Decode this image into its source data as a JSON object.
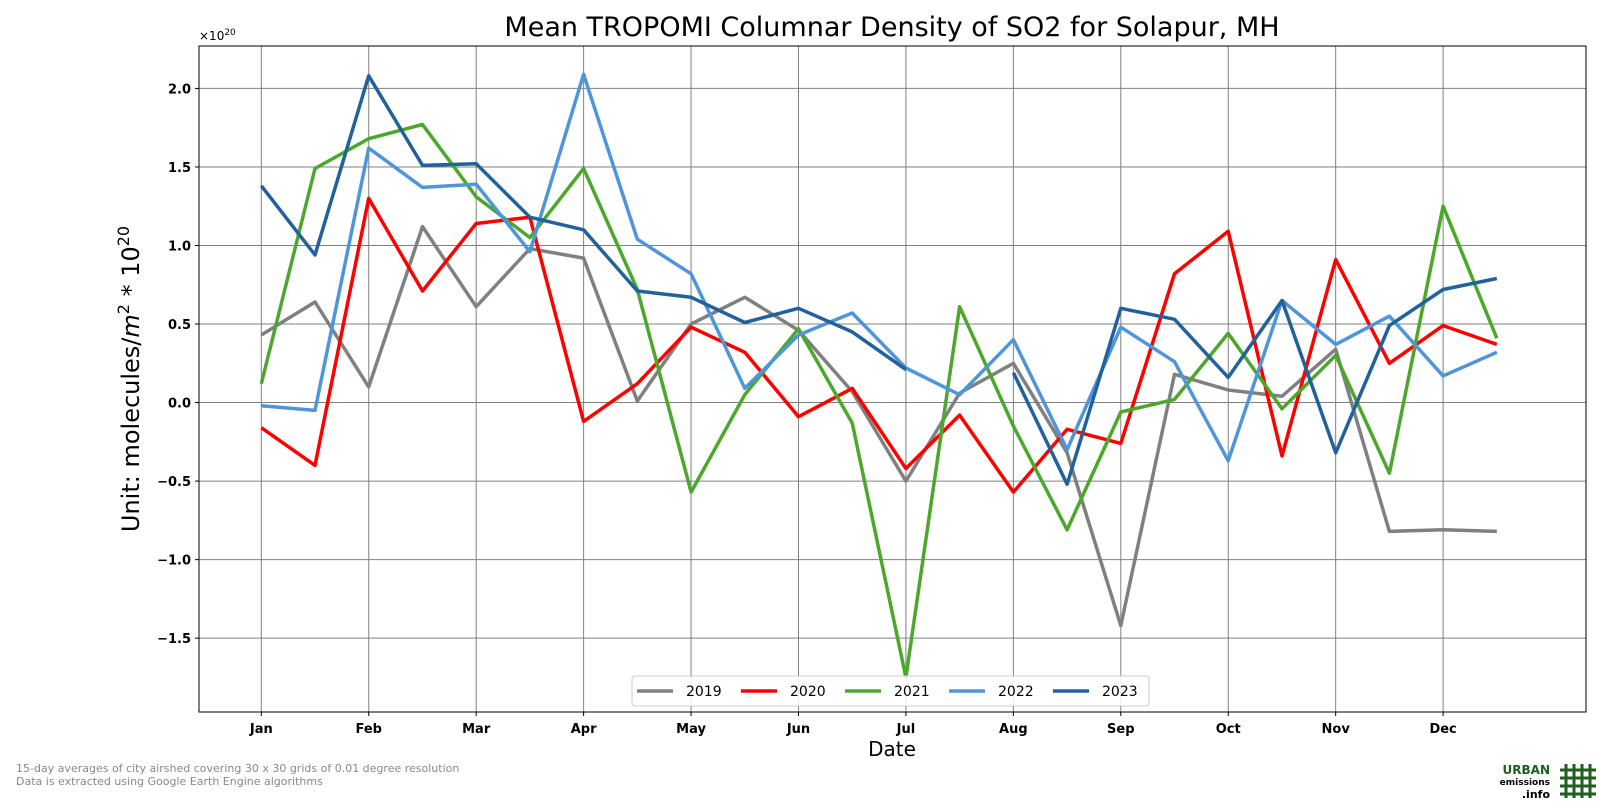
{
  "chart_data": {
    "type": "line",
    "title": "Mean TROPOMI Columnar Density of SO2 for Solapur, MH",
    "xlabel": "Date",
    "ylabel": "Unit: molecules/m² * 10²⁰",
    "ylabel_parts": {
      "prefix": "Unit: molecules/",
      "m": "m",
      "m_exp": "2",
      "mid": " * 10",
      "exp": "20"
    },
    "offset_text": {
      "base": "×10",
      "exp": "20"
    },
    "months": [
      "Jan",
      "Feb",
      "Mar",
      "Apr",
      "May",
      "Jun",
      "Jul",
      "Aug",
      "Sep",
      "Oct",
      "Nov",
      "Dec"
    ],
    "y_ticks": [
      "2.0",
      "1.5",
      "1.0",
      "0.5",
      "0.0",
      "−0.5",
      "−1.0",
      "−1.5"
    ],
    "x_range": [
      -0.58,
      12.33
    ],
    "ylim": [
      -1.97,
      2.27
    ],
    "grid": true,
    "legend_position": "lower center",
    "series": [
      {
        "name": "2019",
        "color": "#808080",
        "x": [
          0,
          0.5,
          1,
          1.5,
          2,
          2.5,
          3,
          3.5,
          4,
          4.5,
          5,
          5.5,
          6,
          6.5,
          7,
          7.5,
          8,
          8.5,
          9,
          9.5,
          10,
          10.5,
          11,
          11.5
        ],
        "values": [
          0.43,
          0.64,
          0.1,
          1.12,
          0.61,
          0.98,
          0.92,
          0.01,
          0.5,
          0.67,
          0.46,
          0.07,
          -0.5,
          0.06,
          0.25,
          -0.32,
          -1.42,
          0.18,
          0.08,
          0.04,
          0.34,
          -0.82,
          -0.81,
          -0.82
        ]
      },
      {
        "name": "2020",
        "color": "#ff0000",
        "x": [
          0,
          0.5,
          1,
          1.5,
          2,
          2.5,
          3,
          3.5,
          4,
          4.5,
          5,
          5.5,
          6,
          6.5,
          7,
          7.5,
          8,
          8.5,
          9,
          9.5,
          10,
          10.5,
          11,
          11.5
        ],
        "values": [
          -0.16,
          -0.4,
          1.3,
          0.71,
          1.14,
          1.18,
          -0.12,
          0.12,
          0.48,
          0.32,
          -0.09,
          0.09,
          -0.42,
          -0.08,
          -0.57,
          -0.17,
          -0.26,
          0.82,
          1.09,
          -0.34,
          0.91,
          0.25,
          0.49,
          0.37
        ]
      },
      {
        "name": "2021",
        "color": "#4ca82b",
        "x": [
          0,
          0.5,
          1,
          1.5,
          2,
          2.5,
          3,
          3.5,
          4,
          4.5,
          5,
          5.5,
          6,
          6.5,
          7,
          7.5,
          8,
          8.5,
          9,
          9.5,
          10,
          10.5,
          11,
          11.5
        ],
        "values": [
          0.12,
          1.49,
          1.68,
          1.77,
          1.31,
          1.05,
          1.49,
          0.72,
          -0.57,
          0.05,
          0.47,
          -0.13,
          -1.75,
          0.61,
          -0.15,
          -0.81,
          -0.06,
          0.02,
          0.44,
          -0.04,
          0.3,
          -0.45,
          1.25,
          0.41
        ]
      },
      {
        "name": "2022",
        "color": "#4e95d9",
        "x": [
          0,
          0.5,
          1,
          1.5,
          2,
          2.5,
          3,
          3.5,
          4,
          4.5,
          5,
          5.5,
          6,
          6.5,
          7,
          7.5,
          8,
          8.5,
          9,
          9.5,
          10,
          10.5,
          11,
          11.5
        ],
        "values": [
          -0.02,
          -0.05,
          1.62,
          1.37,
          1.39,
          0.96,
          2.09,
          1.04,
          0.82,
          0.09,
          0.43,
          0.57,
          0.22,
          0.05,
          0.4,
          -0.3,
          0.48,
          0.26,
          -0.37,
          0.65,
          0.37,
          0.55,
          0.17,
          0.32
        ]
      },
      {
        "name": "2023",
        "color": "#21619c",
        "segments": [
          {
            "x": [
              0,
              0.5,
              1,
              1.5,
              2,
              2.5,
              3,
              3.5,
              4,
              4.5,
              5,
              5.5,
              6
            ],
            "values": [
              1.38,
              0.94,
              2.08,
              1.51,
              1.52,
              1.18,
              1.1,
              0.71,
              0.67,
              0.51,
              0.6,
              0.45,
              0.21
            ]
          },
          {
            "x": [
              7,
              7.5,
              8,
              8.5,
              9,
              9.5,
              10,
              10.5,
              11,
              11.5
            ],
            "values": [
              0.19,
              -0.52,
              0.6,
              0.53,
              0.16,
              0.65,
              -0.32,
              0.49,
              0.72,
              0.79
            ]
          }
        ]
      }
    ]
  },
  "footnotes": {
    "line1": "15-day averages of city airshed covering 30 x 30 grids of 0.01 degree resolution",
    "line2": "Data is extracted using Google Earth Engine algorithms"
  },
  "logo": {
    "line1": "URBAN",
    "line2": "emissions",
    "line3": ".info",
    "icon": "grid-hash-logo-icon",
    "color": "#1e5e1e"
  }
}
